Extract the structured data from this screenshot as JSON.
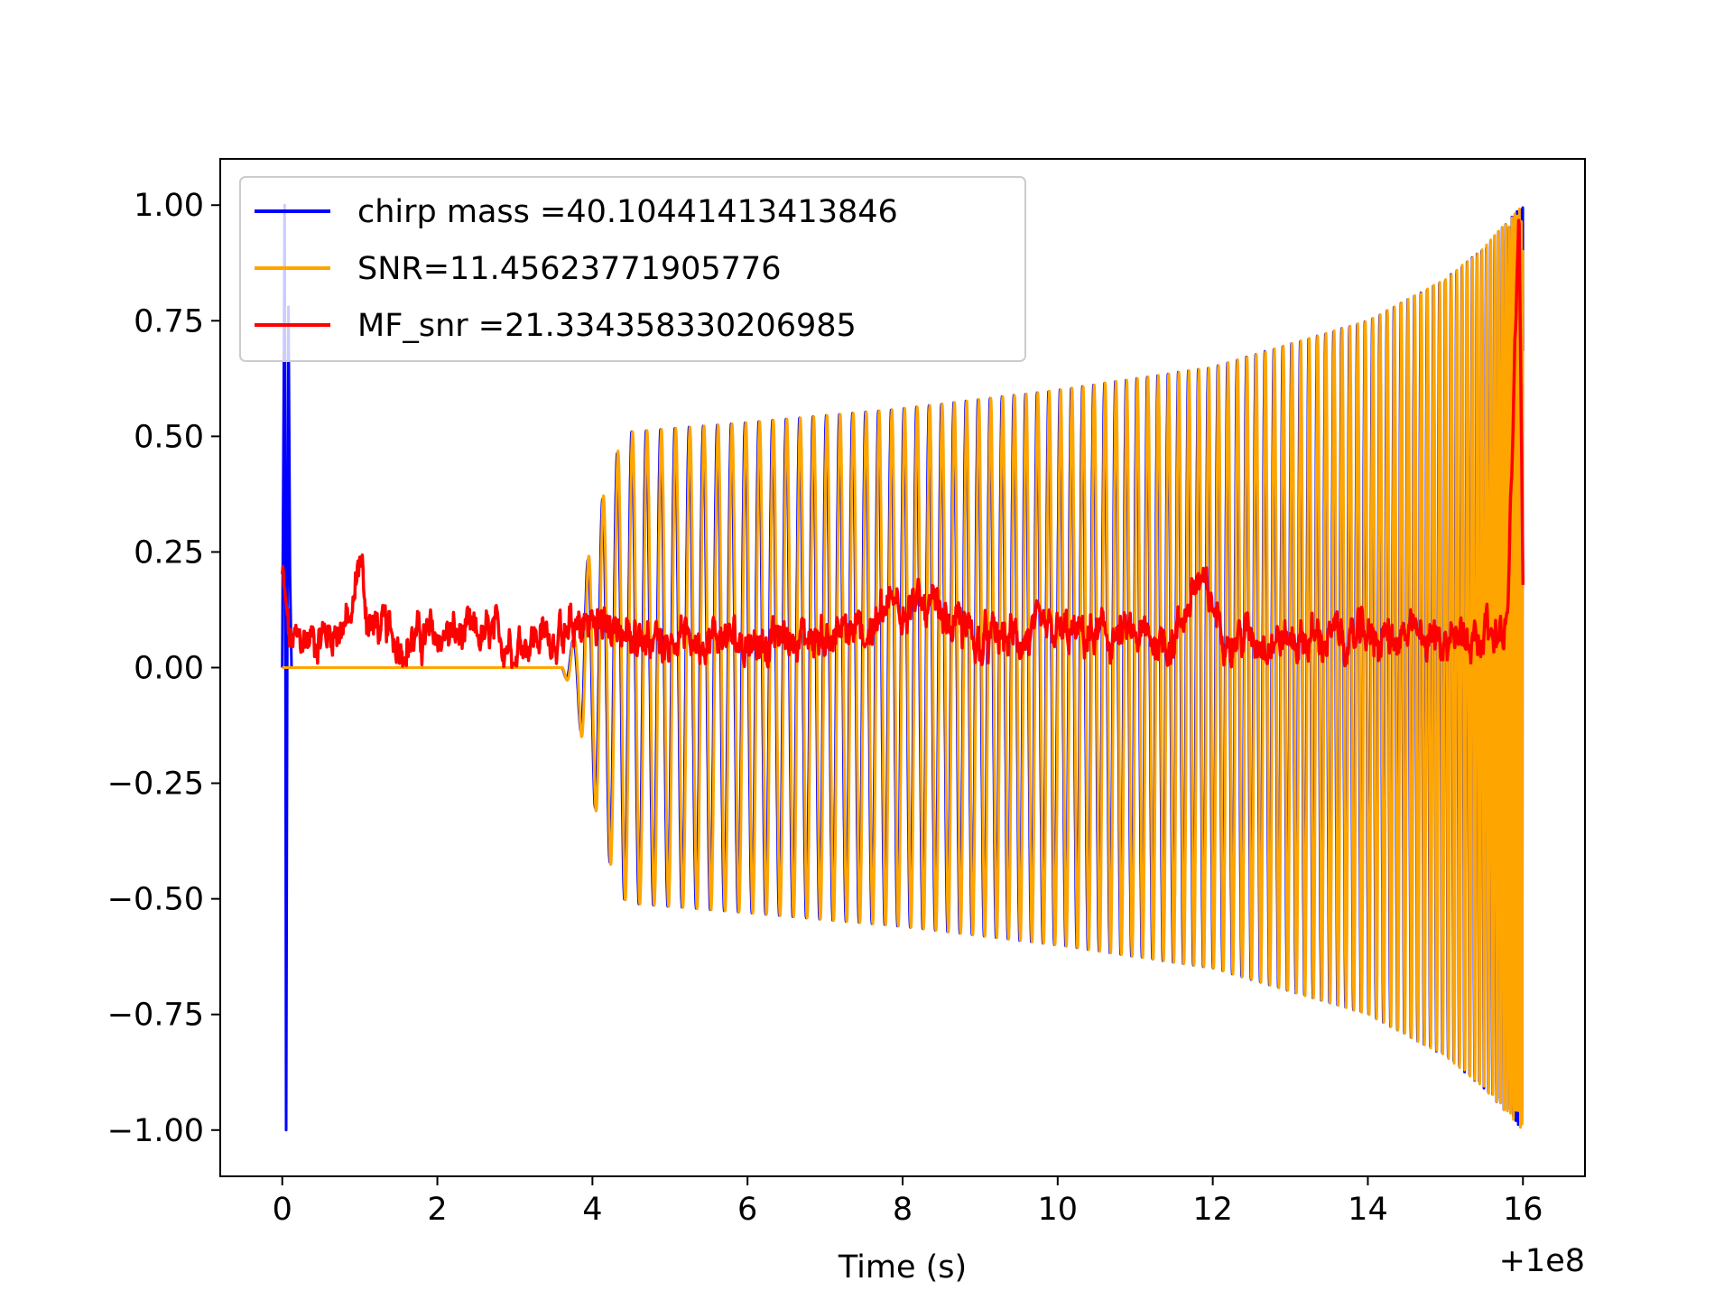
{
  "chart_data": {
    "type": "line",
    "title": "",
    "xlabel": "Time (s)",
    "ylabel": "",
    "x_offset_text": "+1e8",
    "xlim": [
      -0.8,
      16.8
    ],
    "ylim": [
      -1.1,
      1.1
    ],
    "xticks": [
      0,
      2,
      4,
      6,
      8,
      10,
      12,
      14,
      16
    ],
    "xtick_labels": [
      "0",
      "2",
      "4",
      "6",
      "8",
      "10",
      "12",
      "14",
      "16"
    ],
    "yticks": [
      1.0,
      0.75,
      0.5,
      0.25,
      0.0,
      -0.25,
      -0.5,
      -0.75,
      -1.0
    ],
    "ytick_labels": [
      "1.00",
      "0.75",
      "0.50",
      "0.25",
      "0.00",
      "−0.25",
      "−0.50",
      "−0.75",
      "−1.00"
    ],
    "grid": false,
    "legend_position": "top-left",
    "series": [
      {
        "name": "chirp mass =40.10441413413846",
        "color": "#0000ff",
        "kind": "whitened-strain",
        "values_description_points": {
          "x": [
            0.0,
            0.03,
            0.05,
            0.08,
            0.12,
            3.6,
            3.8,
            3.9,
            4.0,
            4.2,
            4.4,
            4.5,
            6,
            8,
            10,
            12,
            14,
            15,
            15.5,
            16.0
          ],
          "envelope": [
            0.0,
            1.0,
            -1.0,
            0.78,
            0.0,
            0.0,
            0.08,
            0.2,
            0.28,
            0.41,
            0.5,
            0.51,
            0.53,
            0.56,
            0.6,
            0.65,
            0.75,
            0.84,
            0.91,
            1.0
          ]
        }
      },
      {
        "name": "SNR=11.45623771905776",
        "color": "#ffa500",
        "kind": "template",
        "envelope_points": {
          "x": [
            0.0,
            3.6,
            3.8,
            3.9,
            4.0,
            4.2,
            4.4,
            4.5,
            6,
            8,
            10,
            12,
            14,
            15,
            15.5,
            16.0
          ],
          "amplitude": [
            0.0,
            0.0,
            0.08,
            0.2,
            0.28,
            0.41,
            0.5,
            0.51,
            0.53,
            0.56,
            0.6,
            0.65,
            0.75,
            0.84,
            0.91,
            1.0
          ]
        }
      },
      {
        "name": "MF_snr =21.334358330206985",
        "color": "#ff0000",
        "kind": "matched-filter-snr",
        "points": {
          "x": [
            0.0,
            0.05,
            0.1,
            0.5,
            0.9,
            1.0,
            1.1,
            1.5,
            2.2,
            3.0,
            3.8,
            4.0,
            4.5,
            6,
            7.5,
            8,
            9.0,
            10,
            11.5,
            11.8,
            12.2,
            13,
            14,
            15,
            15.8,
            15.95,
            16.0
          ],
          "y": [
            0.2,
            0.12,
            0.05,
            0.07,
            0.1,
            0.25,
            0.1,
            0.06,
            0.07,
            0.06,
            0.08,
            0.1,
            0.07,
            0.06,
            0.07,
            0.15,
            0.06,
            0.07,
            0.06,
            0.19,
            0.07,
            0.06,
            0.07,
            0.06,
            0.09,
            1.0,
            0.2
          ]
        }
      }
    ]
  }
}
